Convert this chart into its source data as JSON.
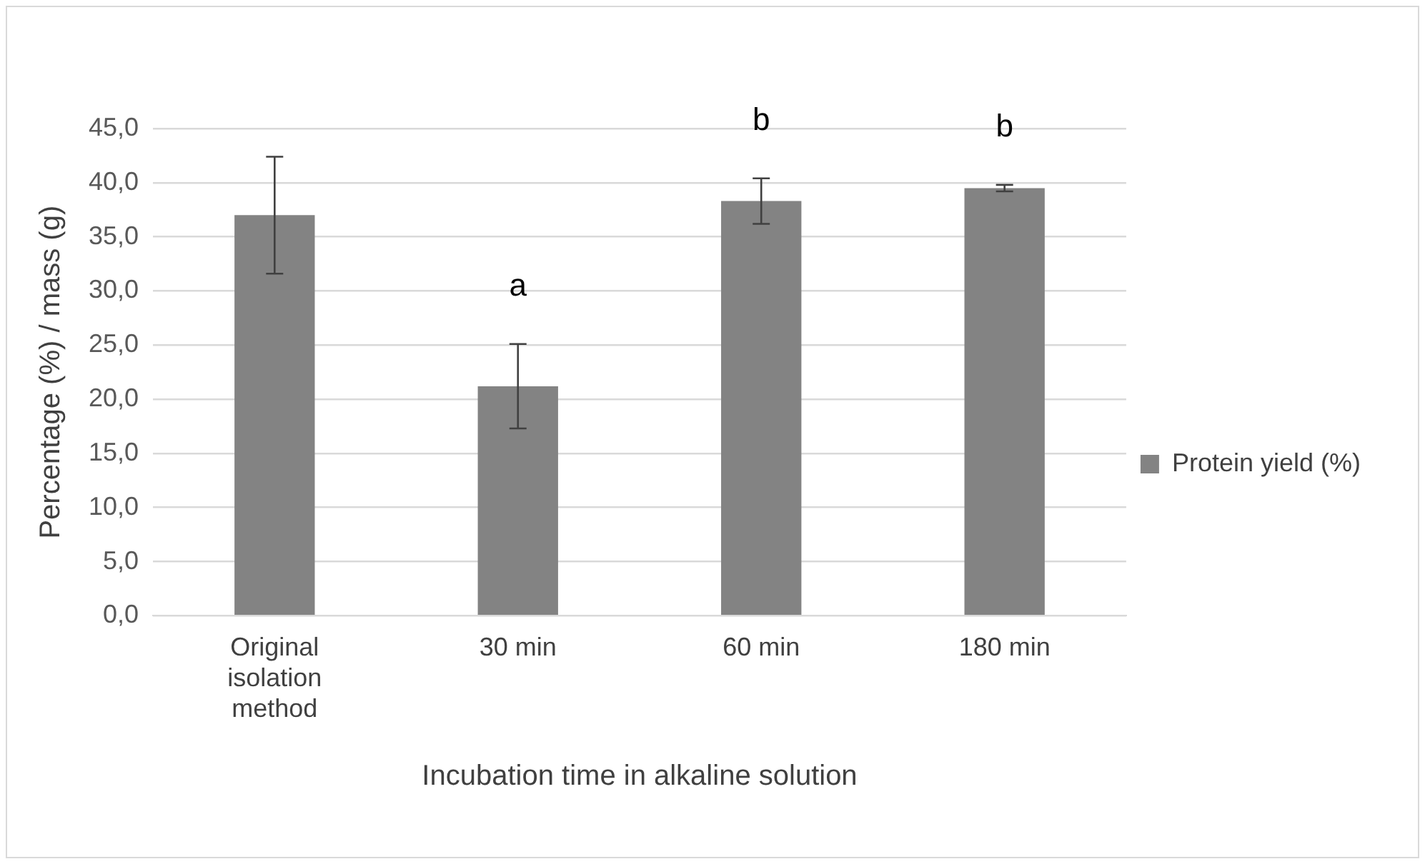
{
  "chart_data": {
    "type": "bar",
    "xlabel": "Incubation time in alkaline solution",
    "ylabel": "Percentage (%) / mass (g)",
    "categories": [
      "Original isolation method",
      "30 min",
      "60 min",
      "180 min"
    ],
    "series": [
      {
        "name": "Protein yield (%)",
        "color": "#838383",
        "values": [
          37.0,
          21.2,
          38.3,
          39.5
        ],
        "errors": [
          5.4,
          3.9,
          2.1,
          0.3
        ]
      }
    ],
    "ylim": [
      0,
      45
    ],
    "yticks": [
      {
        "value": 0,
        "label": "0,0"
      },
      {
        "value": 5,
        "label": "5,0"
      },
      {
        "value": 10,
        "label": "10,0"
      },
      {
        "value": 15,
        "label": "15,0"
      },
      {
        "value": 20,
        "label": "20,0"
      },
      {
        "value": 25,
        "label": "25,0"
      },
      {
        "value": 30,
        "label": "30,0"
      },
      {
        "value": 35,
        "label": "35,0"
      },
      {
        "value": 40,
        "label": "40,0"
      },
      {
        "value": 45,
        "label": "45,0"
      }
    ],
    "grid": "y",
    "legend": "right",
    "annotations": [
      {
        "text": "a",
        "x": "30 min",
        "y": 21.2
      },
      {
        "text": "b",
        "x": "60 min",
        "y": 38.3
      },
      {
        "text": "b",
        "x": "180 min",
        "y": 39.5
      }
    ]
  }
}
